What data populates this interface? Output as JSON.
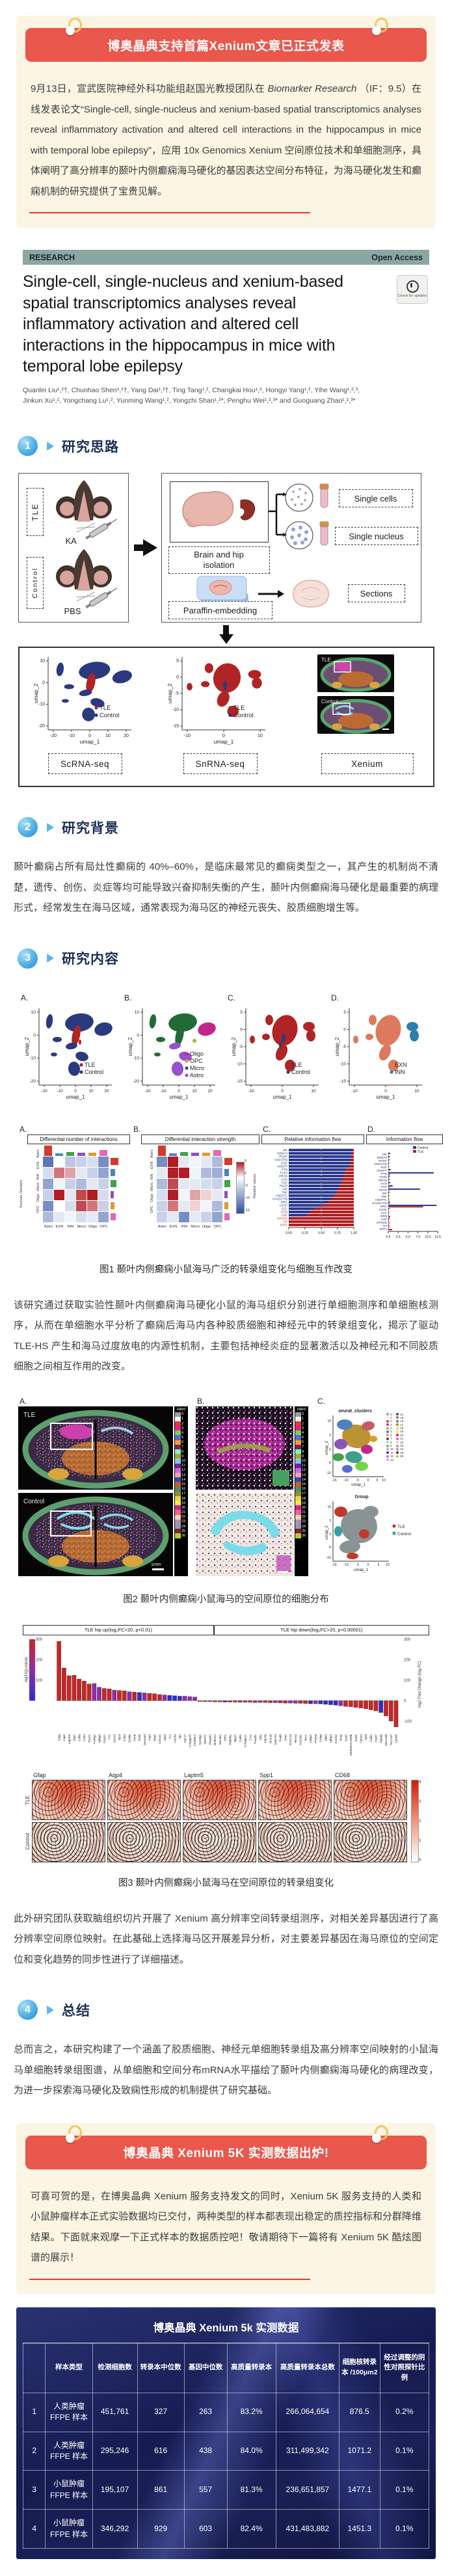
{
  "banner1": {
    "title": "博奥晶典支持首篇Xenium文章已正式发表"
  },
  "intro": {
    "p1": "9月13日，宣武医院神经外科功能组赵国光教授团队在 ",
    "journal": "Biomarker Research",
    "p2": " （IF：9.5）在线发表论文“Single-cell, single-nucleus and xenium-based spatial transcriptomics analyses reveal inflammatory activation and altered cell interactions in the hippocampus in mice with temporal lobe epilepsy”，应用 10x Genomics Xenium 空间原位技术和单细胞测序，具体阐明了高分辨率的颞叶内侧癫痫海马硬化的基因表达空间分布特征，为海马硬化发生和癫痫机制的研究提供了宝贵见解。"
  },
  "paper": {
    "research_label": "RESEARCH",
    "open_access": "Open Access",
    "title": "Single-cell, single-nucleus and xenium-based spatial transcriptomics analyses reveal inflammatory activation and altered cell interactions in the hippocampus in mice with temporal lobe epilepsy",
    "check_updates": "Check for updates",
    "authors_line1": "Quanlei Liu¹,²†, Chunhao Shen¹,²†, Yang Dai¹,²†, Ting Tang¹,², Changkai Hou¹,², Hongyi Yang¹,², Yihe Wang¹,²,³,",
    "authors_line2": "Jinkun Xu¹,², Yongchang Lu¹,², Yunming Wang¹,², Yongzhi Shan¹,²*, Penghu Wei¹,²,³* and Guoguang Zhao¹,²,³*"
  },
  "sections": [
    {
      "num": "1",
      "title": "研究思路"
    },
    {
      "num": "2",
      "title": "研究背景"
    },
    {
      "num": "3",
      "title": "研究内容"
    },
    {
      "num": "4",
      "title": "总结"
    }
  ],
  "flow": {
    "tle": "TLE",
    "ka": "KA",
    "control": "Control",
    "pbs": "PBS",
    "brain_iso": "Brain and hip isolation",
    "single_cells": "Single cells",
    "single_nucleus": "Single nucleus",
    "paraffin": "Paraffin-embedding",
    "sections_label": "Sections",
    "scrna": "ScRNA-seq",
    "snrna": "SnRNA-seq",
    "xenium": "Xenium",
    "legend_tle": "TLE",
    "legend_control": "Control",
    "umap1": "umap_1",
    "umap2": "umap_2",
    "xenium_tle": "TLE",
    "xenium_control": "Control"
  },
  "background_text": "颞叶癫痫占所有局灶性癫痫的 40%–60%，是临床最常见的癫痫类型之一，其产生的机制尚不清楚，遗传、创伤、炎症等均可能导致兴奋抑制失衡的产生，颞叶内侧癫痫海马硬化是最重要的病理形式，经常发生在海马区域，通常表现为海马区的神经元丧失、胶质细胞增生等。",
  "content_para1": "该研究通过获取实验性颞叶内侧癫痫海马硬化小鼠的海马组织分别进行单细胞测序和单细胞核测序，从而在单细胞水平分析了癫痫后海马内各种胶质细胞和神经元中的转录组变化，揭示了驱动 TLE-HS 产生和海马过度放电的内源性机制，主要包括神经炎症的显著激活以及神经元和不同胶质细胞之间相互作用的改变。",
  "content_para2": "此外研究团队获取脑组织切片开展了 Xenium 高分辨率空间转录组测序，对相关差异基因进行了高分辨率空间原位映射。在此基础上选择海马区开展差异分析，对主要差异基因在海马原位的空间定位和变化趋势的同步性进行了详细描述。",
  "summary_text": "总而言之，本研究构建了一个涵盖了胶质细胞、神经元单细胞转录组及高分辨率空间映射的小鼠海马单细胞转录组图谱，从单细胞和空间分布mRNA水平描绘了颞叶内侧癫痫海马硬化的病理改变，为进一步探索海马硬化及致痫性形成的机制提供了研究基础。",
  "fig1": {
    "tags": [
      "A.",
      "B.",
      "C.",
      "D."
    ],
    "caption": "图1 颞叶内侧癫痫小鼠海马广泛的转录组变化与细胞互作改变",
    "umap_x": "umap_1",
    "umap_y": "umap_2",
    "legendA": [
      [
        "TLE",
        "#b02425"
      ],
      [
        "Control",
        "#2b3a7e"
      ]
    ],
    "legendB": [
      [
        "Oligo",
        "#c2268a"
      ],
      [
        "OPC",
        "#b8b024"
      ],
      [
        "Micro",
        "#226b36"
      ],
      [
        "Astro",
        "#9a4fd0"
      ]
    ],
    "legendC": [
      [
        "TLE",
        "#b02425"
      ],
      [
        "Control",
        "#2b3a7e"
      ]
    ],
    "legendD": [
      [
        "EXN",
        "#dd7a5e"
      ],
      [
        "INN",
        "#2e7fae"
      ]
    ]
  },
  "fig2": {
    "tags": [
      "A.",
      "B.",
      "C."
    ],
    "caption": "图2 颞叶内侧癫痫小鼠海马的空间原位的细胞分布",
    "ident": "ident",
    "tle": "TLE",
    "control": "Control",
    "scalebar": "1mm",
    "seurat_title": "seurat_clusters",
    "group_title": "Group",
    "umap_x": "umap_1",
    "umap_y": "umap_2",
    "group_legend": [
      [
        "TLE",
        "#c0392b"
      ],
      [
        "Control",
        "#3a9ea5"
      ]
    ]
  },
  "fig3": {
    "caption": "图3 颞叶内侧癫痫小鼠海马在空间原位的转录组变化",
    "genes_row": [
      "Gfap",
      "Aqp4",
      "Laptm5",
      "Spp1",
      "CD68"
    ],
    "row_tle": "TLE",
    "row_control": "Control",
    "cbar_ticks": [
      "4",
      "3",
      "2",
      "1",
      "0"
    ]
  },
  "banner2": {
    "title": "博奥晶典 Xenium 5K 实测数据出炉!"
  },
  "promo_text": "可喜可贺的是，在博奥晶典 Xenium 服务支持发文的同时，Xenium 5K 服务支持的人类和小鼠肿瘤样本正式实验数据均已交付，两种类型的样本都表现出稳定的质控指标和分群降维结果。下面就来观摩一下正式样本的数据质控吧！敬请期待下一篇将有 Xenium 5K 酷炫图谱的展示！",
  "table": {
    "title": "博奥晶典 Xenium 5k 实测数据",
    "headers": [
      "",
      "样本类型",
      "检测细胞数",
      "转录本中位数",
      "基因中位数",
      "高质量转录本",
      "高质量转录本总数",
      "细胞核转录本 /100μm2",
      "经过调整的阴性对照探针比例"
    ],
    "rows": [
      [
        "1",
        "人类肿瘤 FFPE 样本",
        "451,761",
        "327",
        "263",
        "83.2%",
        "266,064,654",
        "876.5",
        "0.2%"
      ],
      [
        "2",
        "人类肿瘤 FFPE 样本",
        "295,246",
        "616",
        "438",
        "84.0%",
        "311,499,342",
        "1071.2",
        "0.1%"
      ],
      [
        "3",
        "小鼠肿瘤 FFPE 样本",
        "195,107",
        "861",
        "557",
        "81.3%",
        "236,651,857",
        "1477.1",
        "0.1%"
      ],
      [
        "4",
        "小鼠肿瘤 FFPE 样本",
        "346,292",
        "929",
        "603",
        "82.4%",
        "431,483,882",
        "1451.3",
        "0.1%"
      ]
    ]
  },
  "chart_data": [
    {
      "id": "fig1-relative-information-flow",
      "type": "bar",
      "title": "Relative information flow",
      "orientation": "horizontal-stacked",
      "categories": [
        "MK",
        "SEMA3",
        "PDGF",
        "VISFATIN",
        "EGF",
        "ANGPT",
        "PTN",
        "TGFb",
        "PROS",
        "GAS",
        "FGF",
        "PSAP",
        "IGF",
        "TNF",
        "ANGPTL",
        "GALECTIN",
        "NRG",
        "CX3C",
        "CCL",
        "GRN",
        "CSF",
        "OPIOID",
        "NT",
        "SPP1"
      ],
      "series": [
        {
          "name": "Control",
          "color": "#2b3a8e",
          "values": [
            0.97,
            0.97,
            0.96,
            0.96,
            0.95,
            0.93,
            0.88,
            0.86,
            0.84,
            0.83,
            0.8,
            0.78,
            0.76,
            0.73,
            0.7,
            0.66,
            0.6,
            0.52,
            0.4,
            0.33,
            0.27,
            0.02,
            0.01,
            0.0
          ]
        },
        {
          "name": "TLE",
          "color": "#b01f24",
          "values": [
            0.03,
            0.03,
            0.04,
            0.04,
            0.05,
            0.07,
            0.12,
            0.14,
            0.16,
            0.17,
            0.2,
            0.22,
            0.24,
            0.27,
            0.3,
            0.34,
            0.4,
            0.48,
            0.6,
            0.67,
            0.73,
            0.98,
            0.99,
            1.0
          ]
        }
      ],
      "red_labels": [
        "GRN",
        "OPIOID",
        "NT",
        "SPP1"
      ],
      "xticks": [
        "0.00",
        "0.25",
        "0.50",
        "0.75",
        "1.00"
      ],
      "xlim": [
        0,
        1
      ]
    },
    {
      "id": "fig1-information-flow",
      "type": "bar",
      "title": "Information flow",
      "orientation": "horizontal-grouped",
      "categories": [
        "MK",
        "SEMA3",
        "PDGF",
        "VISFATIN",
        "EGF",
        "ANGPT",
        "PTN",
        "TGFb",
        "PROS",
        "GAS",
        "FGF",
        "PSAP",
        "IGF",
        "TNF",
        "ANGPTL",
        "GALECTIN",
        "NRG",
        "CX3C",
        "CCL",
        "GRN",
        "CSF",
        "OPIOID",
        "NT",
        "SPP1"
      ],
      "series": [
        {
          "name": "Control",
          "color": "#2b3a8e",
          "values": [
            0.5,
            0.35,
            0.3,
            0.25,
            0.2,
            0.6,
            11.5,
            0.4,
            0.3,
            0.5,
            1.1,
            8.0,
            0.3,
            0.25,
            0.2,
            0.4,
            12.2,
            0.3,
            0.2,
            0.15,
            0.3,
            0.05,
            0.1,
            0.1
          ]
        },
        {
          "name": "TLE",
          "color": "#b01f24",
          "values": [
            0.15,
            0.1,
            0.1,
            0.08,
            0.06,
            0.2,
            0.35,
            0.15,
            0.1,
            0.15,
            0.3,
            0.25,
            0.1,
            0.1,
            0.08,
            0.3,
            8.8,
            0.15,
            0.1,
            0.5,
            0.2,
            0.3,
            0.35,
            1.0
          ]
        }
      ],
      "xticks": [
        "0.0",
        "2.5",
        "5.0",
        "7.5",
        "10.0",
        "12.5"
      ],
      "xlim": [
        0,
        12.5
      ]
    },
    {
      "id": "fig1-heatmap-number",
      "type": "heatmap",
      "title": "Differential number of interactions",
      "ylabel": "Sources (Sender)",
      "rows": [
        "Astro",
        "EXN",
        "INN",
        "Micro",
        "Oligo",
        "OPC"
      ],
      "cols": [
        "Astro",
        "EXN",
        "INN",
        "Micro",
        "Oligo",
        "OPC"
      ],
      "values": [
        [
          -12,
          0,
          -5,
          -4,
          -3,
          -10
        ],
        [
          -3,
          3,
          2,
          -2,
          -4,
          -8
        ],
        [
          -8,
          -1,
          -4,
          -6,
          -2,
          -4
        ],
        [
          -4,
          12,
          -2,
          4,
          5,
          -3
        ],
        [
          -10,
          0,
          -3,
          4,
          3,
          -4
        ],
        [
          -6,
          -2,
          -1,
          -3,
          -2,
          -8
        ]
      ],
      "scale": [
        -15,
        5
      ]
    },
    {
      "id": "fig1-heatmap-strength",
      "type": "heatmap",
      "title": "Differential interaction strength",
      "legend": "Relative values",
      "rows": [
        "Astro",
        "EXN",
        "INN",
        "Micro",
        "Oligo",
        "OPC"
      ],
      "cols": [
        "Astro",
        "EXN",
        "INN",
        "Micro",
        "Oligo",
        "OPC"
      ],
      "values": [
        [
          -10,
          6,
          -2,
          -1,
          -2,
          -6
        ],
        [
          -2,
          10,
          14,
          -1,
          -6,
          -7
        ],
        [
          -6,
          4,
          -2,
          -2,
          -3,
          -4
        ],
        [
          -3,
          5,
          -1,
          2,
          1,
          -2
        ],
        [
          -4,
          3,
          -2,
          1,
          -1,
          -6
        ],
        [
          -4,
          -2,
          -10,
          -2,
          -4,
          -8
        ]
      ],
      "scale": [
        -15,
        5
      ],
      "scale_ticks": [
        "5",
        "0",
        "-5",
        "-10",
        "-15"
      ]
    },
    {
      "id": "fig3-deg-bars",
      "type": "bar",
      "up_header": "TLE hip up(log₂FC>20,  p<0.01)",
      "down_header": "TLE hip down(log₂FC>20,  p<0.00001)",
      "ylabel_left": "-log10(p-value)",
      "ylabel_right": "log2 Fold Change (log₂FC)",
      "left_ticks": [
        "300",
        "200",
        "100"
      ],
      "right_ticks": [
        "300",
        "200",
        "100",
        "0",
        "-100"
      ],
      "genes": [
        "Gfap",
        "Aqp4",
        "Laptm5",
        "Spp1",
        "Cd68",
        "Cd44",
        "Trem2",
        "Acsbg1",
        "Igfbp5",
        "Gng12",
        "Fn1",
        "Sox10",
        "Gjc3",
        "Cd53",
        "Sdcbp",
        "Penk",
        "Rorb",
        "Sema3d",
        "Prph",
        "Sfrp5",
        "Col1a1",
        "Myl4",
        "Arc",
        "Cd24a",
        "Spr",
        "Gpr17",
        "Arhgap25",
        "Cd300c2",
        "Syndig1",
        "Sparcl1",
        "Rasgrf2",
        "Bhlhe22",
        "Necab1",
        "Wfs1",
        "Plekhb1",
        "Npy2r",
        "Calb1",
        "Arhgap12",
        "Ccr2",
        "Pou3f1",
        "Slit2",
        "Pde7b",
        "Bcl11b",
        "Galnt14",
        "Pvalb",
        "Dner",
        "Gm2115",
        "Rims3",
        "Col19a1",
        "Nrn1",
        "Cabp2",
        "Prdm8",
        "Crhbp",
        "Dkk3",
        "Igfbp4",
        "Kctd12",
        "Nrep",
        "Gad2",
        "3000002C10Rik",
        "Gad1",
        "Cpne4",
        "Syt6",
        "Calb2",
        "Fxyd7",
        "Rab3b",
        "Neurod6",
        "Slc17a7",
        "Cpne6"
      ],
      "log2fc": [
        290,
        160,
        122,
        124,
        106,
        96,
        82,
        84,
        66,
        60,
        58,
        52,
        50,
        48,
        44,
        42,
        40,
        38,
        36,
        34,
        30,
        28,
        26,
        24,
        22,
        22,
        20,
        18,
        -4,
        -5,
        -5,
        -6,
        -6,
        -7,
        -7,
        -7,
        -8,
        -8,
        -8,
        -9,
        -9,
        -9,
        -10,
        -10,
        -11,
        -12,
        -12,
        -13,
        -13,
        -14,
        -15,
        -15,
        -16,
        -18,
        -20,
        -22,
        -25,
        -28,
        -30,
        -33,
        -36,
        -40,
        -45,
        -50,
        -58,
        -75,
        -100,
        -128
      ],
      "bar_colors": [
        "r",
        "r",
        "r",
        "r",
        "r",
        "r",
        "r",
        "p",
        "p",
        "r",
        "r",
        "p",
        "r",
        "r",
        "p",
        "r",
        "b",
        "p",
        "r",
        "r",
        "r",
        "p",
        "b",
        "b",
        "b",
        "p",
        "p",
        "p",
        "r",
        "r",
        "p",
        "r",
        "r",
        "b",
        "r",
        "r",
        "r",
        "p",
        "r",
        "r",
        "p",
        "r",
        "r",
        "p",
        "r",
        "r",
        "p",
        "p",
        "r",
        "r",
        "b",
        "p",
        "b",
        "b",
        "b",
        "b",
        "p",
        "r",
        "r",
        "r",
        "r",
        "r",
        "r",
        "r",
        "b",
        "r",
        "r",
        "r"
      ]
    }
  ]
}
